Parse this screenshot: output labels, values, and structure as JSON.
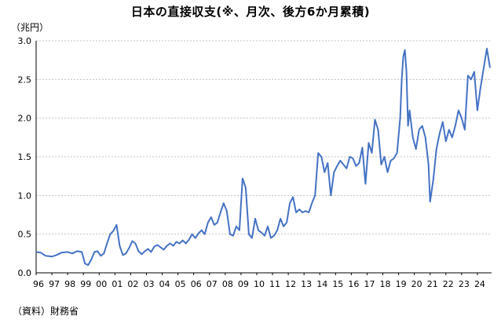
{
  "chart_data": {
    "type": "line",
    "title": "日本の直接収支(※、月次、後方6か月累積)",
    "unit_label": "（兆円）",
    "source": "（資料）財務省",
    "ylim": [
      0,
      3.0
    ],
    "yticks": [
      "0.0",
      "0.5",
      "1.0",
      "1.5",
      "2.0",
      "2.5",
      "3.0"
    ],
    "xlim": [
      1996,
      2024.9
    ],
    "xticks": [
      "96",
      "97",
      "98",
      "99",
      "00",
      "01",
      "02",
      "03",
      "04",
      "05",
      "06",
      "07",
      "08",
      "09",
      "10",
      "11",
      "12",
      "13",
      "14",
      "15",
      "16",
      "17",
      "18",
      "19",
      "20",
      "21",
      "22",
      "23",
      "24"
    ],
    "grid": true,
    "line_color": "#4472C4",
    "series": [
      {
        "x": [
          1996.0,
          1996.3,
          1996.6,
          1997.0,
          1997.3,
          1997.6,
          1998.0,
          1998.3,
          1998.6,
          1998.9,
          1999.1,
          1999.3,
          1999.5,
          1999.7,
          1999.9,
          2000.1,
          2000.3,
          2000.5,
          2000.7,
          2000.9,
          2001.1,
          2001.3,
          2001.5,
          2001.7,
          2001.9,
          2002.1,
          2002.3,
          2002.5,
          2002.7,
          2002.9,
          2003.1,
          2003.3,
          2003.5,
          2003.7,
          2003.9,
          2004.1,
          2004.3,
          2004.5,
          2004.7,
          2004.9,
          2005.1,
          2005.3,
          2005.5,
          2005.7,
          2005.9,
          2006.1,
          2006.3,
          2006.5,
          2006.7,
          2006.9,
          2007.1,
          2007.3,
          2007.5,
          2007.7,
          2007.9,
          2008.1,
          2008.3,
          2008.5,
          2008.7,
          2008.9,
          2009.1,
          2009.3,
          2009.5,
          2009.7,
          2009.9,
          2010.1,
          2010.3,
          2010.5,
          2010.7,
          2010.9,
          2011.1,
          2011.3,
          2011.5,
          2011.7,
          2011.9,
          2012.1,
          2012.3,
          2012.5,
          2012.7,
          2012.9,
          2013.1,
          2013.3,
          2013.5,
          2013.7,
          2013.9,
          2014.1,
          2014.3,
          2014.5,
          2014.7,
          2014.9,
          2015.1,
          2015.3,
          2015.5,
          2015.7,
          2015.9,
          2016.1,
          2016.3,
          2016.5,
          2016.7,
          2016.9,
          2017.1,
          2017.3,
          2017.5,
          2017.7,
          2017.9,
          2018.1,
          2018.3,
          2018.5,
          2018.7,
          2018.9,
          2019.1,
          2019.2,
          2019.3,
          2019.4,
          2019.5,
          2019.6,
          2019.7,
          2019.9,
          2020.1,
          2020.3,
          2020.5,
          2020.7,
          2020.9,
          2021.0,
          2021.2,
          2021.4,
          2021.6,
          2021.8,
          2022.0,
          2022.2,
          2022.4,
          2022.6,
          2022.8,
          2023.0,
          2023.2,
          2023.4,
          2023.6,
          2023.8,
          2024.0,
          2024.2,
          2024.4,
          2024.6,
          2024.8
        ],
        "y": [
          0.27,
          0.26,
          0.22,
          0.21,
          0.23,
          0.26,
          0.27,
          0.25,
          0.28,
          0.27,
          0.12,
          0.1,
          0.17,
          0.27,
          0.28,
          0.22,
          0.25,
          0.38,
          0.5,
          0.54,
          0.62,
          0.35,
          0.23,
          0.25,
          0.32,
          0.41,
          0.38,
          0.28,
          0.24,
          0.28,
          0.31,
          0.27,
          0.34,
          0.36,
          0.33,
          0.3,
          0.35,
          0.38,
          0.35,
          0.4,
          0.38,
          0.42,
          0.38,
          0.43,
          0.5,
          0.45,
          0.51,
          0.55,
          0.5,
          0.65,
          0.72,
          0.62,
          0.65,
          0.78,
          0.9,
          0.8,
          0.5,
          0.48,
          0.6,
          0.55,
          1.22,
          1.1,
          0.5,
          0.45,
          0.7,
          0.55,
          0.52,
          0.48,
          0.6,
          0.45,
          0.48,
          0.55,
          0.7,
          0.6,
          0.65,
          0.9,
          0.98,
          0.78,
          0.82,
          0.78,
          0.8,
          0.78,
          0.9,
          1.0,
          1.55,
          1.5,
          1.3,
          1.42,
          1.0,
          1.3,
          1.38,
          1.45,
          1.4,
          1.35,
          1.5,
          1.48,
          1.38,
          1.42,
          1.62,
          1.15,
          1.68,
          1.55,
          1.98,
          1.85,
          1.4,
          1.5,
          1.3,
          1.45,
          1.48,
          1.55,
          2.0,
          2.5,
          2.8,
          2.88,
          2.6,
          1.9,
          2.1,
          1.75,
          1.6,
          1.85,
          1.9,
          1.75,
          1.4,
          0.92,
          1.2,
          1.6,
          1.8,
          1.95,
          1.7,
          1.85,
          1.75,
          1.9,
          2.1,
          2.0,
          1.85,
          2.55,
          2.5,
          2.6,
          2.1,
          2.4,
          2.65,
          2.9,
          2.65
        ]
      }
    ]
  }
}
